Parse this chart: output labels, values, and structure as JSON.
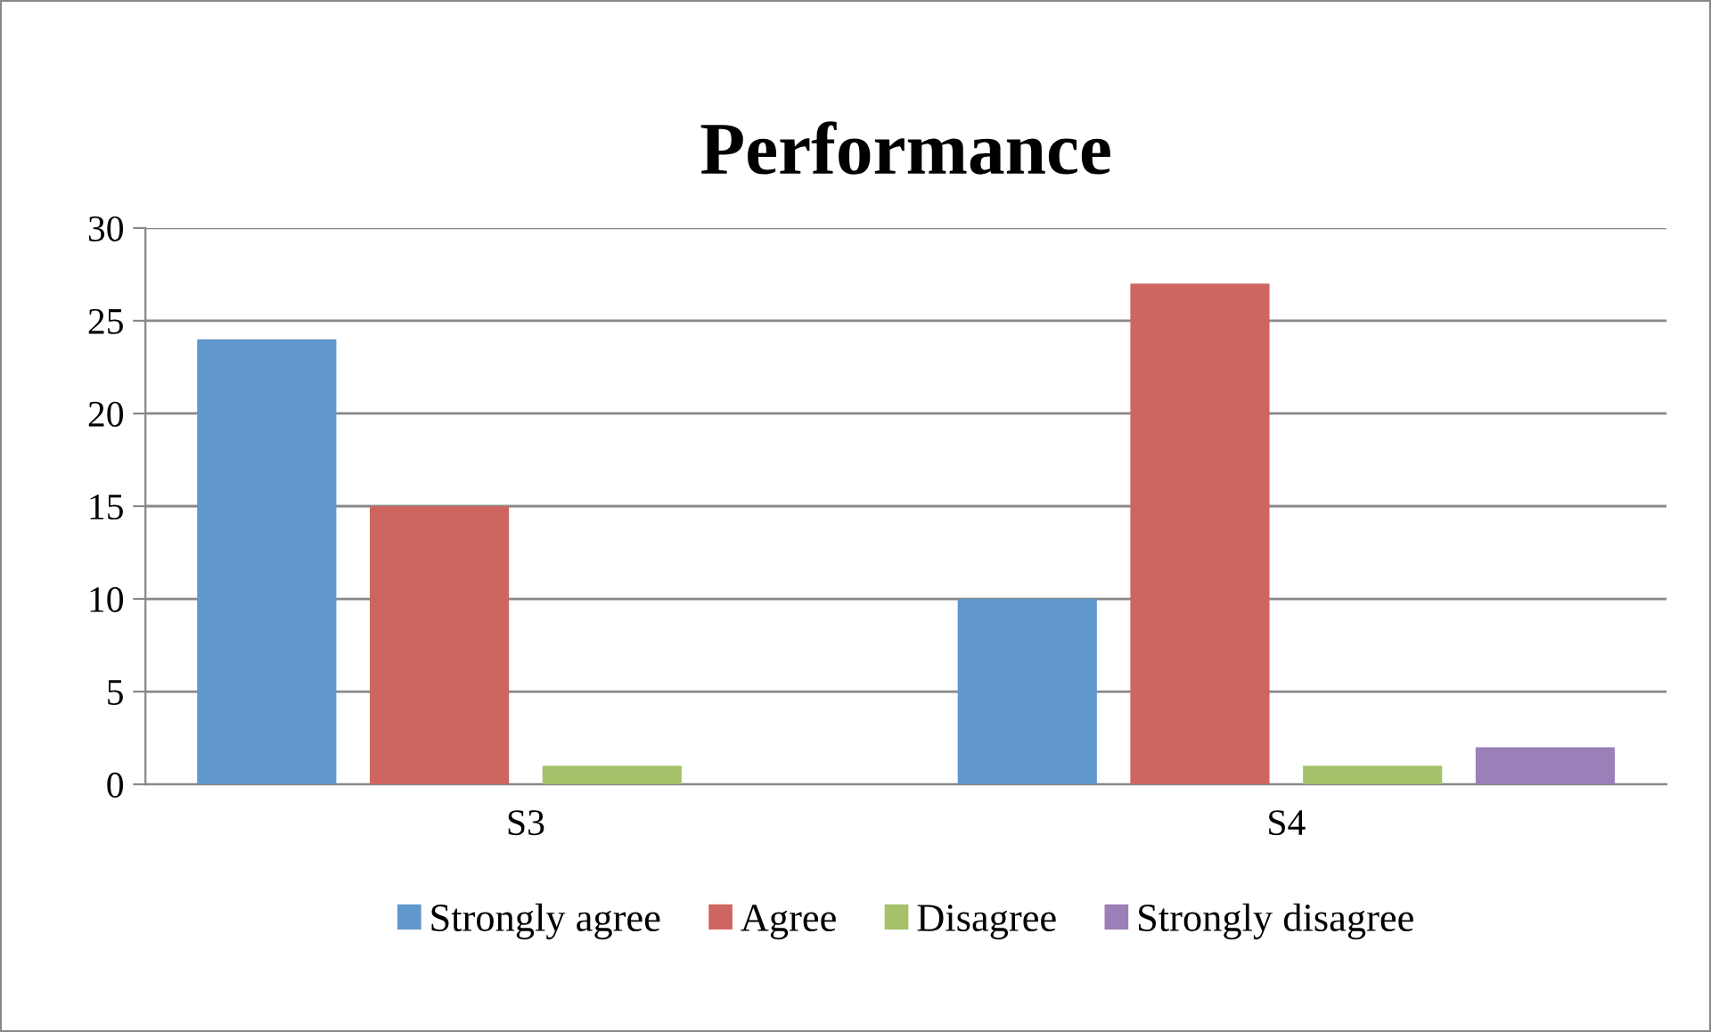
{
  "chart_data": {
    "type": "bar",
    "title": "Performance",
    "categories": [
      "S3",
      "S4"
    ],
    "series": [
      {
        "name": "Strongly agree",
        "color": "#6097cc",
        "values": [
          24,
          10
        ]
      },
      {
        "name": "Agree",
        "color": "#cd6660",
        "values": [
          15,
          27
        ]
      },
      {
        "name": "Disagree",
        "color": "#a5c26a",
        "values": [
          1,
          1
        ]
      },
      {
        "name": "Strongly disagree",
        "color": "#9a7fb8",
        "values": [
          0,
          2
        ]
      }
    ],
    "ylim": [
      0,
      30
    ],
    "yticks": [
      0,
      5,
      10,
      15,
      20,
      25,
      30
    ],
    "grid": "y",
    "legend": "bottom"
  }
}
